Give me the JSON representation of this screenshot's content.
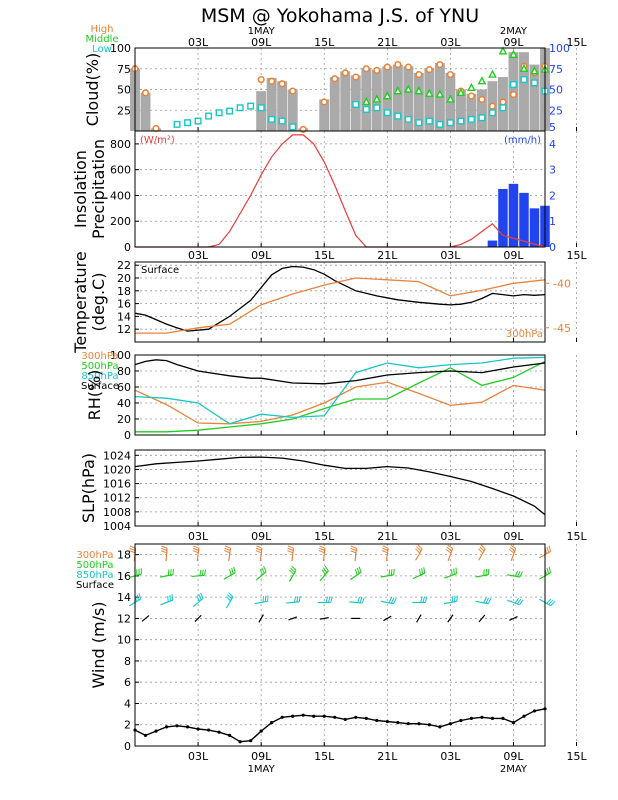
{
  "title": "MSM @ Yokohama J.S. of YNU",
  "colors": {
    "orange": "#e8843c",
    "green": "#22cc22",
    "cyan": "#19c6c6",
    "black": "#000000",
    "red": "#e83c3c",
    "blue": "#2244ee",
    "bar_gray": "#aaaaaa",
    "grid": "#9a9a9a"
  },
  "time_axis": {
    "hours": [
      -3,
      36
    ],
    "tick_labels": [
      "03L",
      "09L",
      "15L",
      "21L",
      "03L",
      "09L",
      "15L"
    ],
    "tick_hours": [
      3,
      9,
      15,
      21,
      27,
      33,
      39
    ],
    "date_labels": [
      {
        "hour": 9,
        "label": "1MAY"
      },
      {
        "hour": 33,
        "label": "2MAY"
      }
    ]
  },
  "chart_data": [
    {
      "type": "bar",
      "name": "cloud",
      "ylabel": "Cloud(%)",
      "ylim": [
        0,
        100
      ],
      "yticks": [
        25,
        50,
        75,
        100
      ],
      "right_ticks": [
        5,
        25,
        50,
        75,
        100
      ],
      "legend": [
        "High",
        "Middle",
        "Low"
      ],
      "x": [
        -3,
        -2,
        -1,
        0,
        1,
        2,
        3,
        4,
        5,
        6,
        7,
        8,
        9,
        10,
        11,
        12,
        13,
        14,
        15,
        16,
        17,
        18,
        19,
        20,
        21,
        22,
        23,
        24,
        25,
        26,
        27,
        28,
        29,
        30,
        31,
        32,
        33,
        34,
        35,
        36
      ],
      "bars": [
        75,
        46,
        3,
        0,
        0,
        0,
        0,
        0,
        0,
        0,
        0,
        0,
        48,
        64,
        60,
        50,
        3,
        0,
        38,
        65,
        72,
        67,
        76,
        74,
        78,
        80,
        78,
        70,
        76,
        82,
        70,
        50,
        45,
        50,
        60,
        65,
        95,
        95,
        80,
        100
      ],
      "series": [
        {
          "name": "High",
          "marker": "circle",
          "values": [
            75,
            46,
            3,
            null,
            null,
            null,
            null,
            null,
            null,
            null,
            null,
            null,
            62,
            60,
            57,
            48,
            2,
            null,
            35,
            63,
            70,
            65,
            75,
            73,
            77,
            80,
            77,
            68,
            74,
            80,
            68,
            48,
            42,
            38,
            30,
            35,
            44,
            78,
            70,
            78
          ]
        },
        {
          "name": "Middle",
          "marker": "triangle",
          "values": [
            null,
            null,
            null,
            null,
            null,
            null,
            null,
            null,
            null,
            null,
            null,
            null,
            null,
            null,
            null,
            null,
            null,
            null,
            null,
            null,
            null,
            null,
            35,
            38,
            42,
            48,
            50,
            48,
            45,
            44,
            38,
            46,
            52,
            60,
            68,
            96,
            92,
            75,
            72,
            74
          ]
        },
        {
          "name": "Low",
          "marker": "square",
          "values": [
            null,
            null,
            null,
            null,
            8,
            10,
            12,
            18,
            22,
            24,
            28,
            30,
            28,
            14,
            12,
            5,
            null,
            null,
            null,
            null,
            null,
            32,
            26,
            28,
            22,
            18,
            14,
            10,
            12,
            8,
            10,
            12,
            14,
            16,
            22,
            28,
            56,
            62,
            58,
            48
          ]
        }
      ]
    },
    {
      "type": "line",
      "name": "insolation-precipitation",
      "ylabel": "Insolation Precipitation",
      "ylim": [
        0,
        900
      ],
      "yticks": [
        0,
        200,
        400,
        600,
        800
      ],
      "left_unit": "(W/m²)",
      "right_unit": "(mm/h)",
      "right_ylim": [
        0,
        4.5
      ],
      "right_ticks": [
        0,
        1,
        2,
        3,
        4
      ],
      "insolation": {
        "x": [
          -3,
          0,
          3,
          4,
          5,
          6,
          7,
          8,
          9,
          10,
          11,
          12,
          13,
          14,
          15,
          16,
          17,
          18,
          19,
          27,
          28,
          29,
          30,
          31,
          32,
          36
        ],
        "values": [
          0,
          0,
          0,
          0,
          20,
          120,
          260,
          400,
          560,
          700,
          800,
          870,
          870,
          800,
          660,
          480,
          280,
          90,
          0,
          0,
          20,
          60,
          120,
          180,
          90,
          0
        ]
      },
      "precipitation": {
        "x": [
          31,
          32,
          33,
          34,
          35,
          36
        ],
        "values": [
          0.25,
          2.25,
          2.45,
          2.1,
          1.5,
          1.6
        ]
      }
    },
    {
      "type": "line",
      "name": "temperature",
      "ylabel": "Temperature (deg.C)",
      "ylim": [
        10,
        22.5
      ],
      "yticks": [
        12,
        14,
        16,
        18,
        20,
        22
      ],
      "right_ticks": [
        -40,
        -45
      ],
      "series_labels": [
        "Surface",
        "300hPa"
      ],
      "surface": {
        "x": [
          -3,
          -2,
          0,
          1,
          2,
          4,
          6,
          8,
          9,
          10,
          11,
          12,
          13,
          14,
          15,
          16,
          18,
          20,
          22,
          24,
          26,
          27,
          28,
          29,
          30,
          31,
          32,
          33,
          34,
          35,
          36
        ],
        "values": [
          14.5,
          14.2,
          12.8,
          12.2,
          11.7,
          12.0,
          14.0,
          16.5,
          18.5,
          20.5,
          21.5,
          21.8,
          21.7,
          21.3,
          20.6,
          19.6,
          18.0,
          17.2,
          16.6,
          16.2,
          15.9,
          15.8,
          15.9,
          16.2,
          16.8,
          17.6,
          17.4,
          17.2,
          17.4,
          17.3,
          17.4
        ]
      },
      "upper_300hPa": {
        "x": [
          -3,
          0,
          3,
          6,
          9,
          12,
          15,
          18,
          21,
          24,
          27,
          30,
          33,
          36
        ],
        "values": [
          -45.6,
          -45.6,
          -45.0,
          -44.6,
          -42.4,
          -41.2,
          -40.2,
          -39.4,
          -39.6,
          -39.8,
          -41.4,
          -40.8,
          -40.0,
          -39.6
        ]
      }
    },
    {
      "type": "line",
      "name": "relative-humidity",
      "ylabel": "RH(%)",
      "ylim": [
        0,
        100
      ],
      "yticks": [
        0,
        20,
        40,
        60,
        80,
        100
      ],
      "legend": [
        "300hPa",
        "500hPa",
        "850hPa",
        "Surface"
      ],
      "series": [
        {
          "name": "300hPa",
          "x": [
            -3,
            0,
            3,
            6,
            9,
            12,
            15,
            18,
            21,
            24,
            27,
            30,
            33,
            36
          ],
          "values": [
            56,
            38,
            15,
            14,
            17,
            25,
            40,
            60,
            66,
            52,
            37,
            41,
            62,
            56
          ]
        },
        {
          "name": "500hPa",
          "x": [
            -3,
            0,
            3,
            6,
            9,
            12,
            15,
            18,
            21,
            24,
            27,
            30,
            33,
            36
          ],
          "values": [
            4,
            4,
            6,
            10,
            14,
            20,
            33,
            45,
            45,
            65,
            84,
            62,
            72,
            92
          ]
        },
        {
          "name": "850hPa",
          "x": [
            -3,
            0,
            3,
            6,
            9,
            12,
            15,
            18,
            21,
            24,
            27,
            30,
            33,
            36
          ],
          "values": [
            48,
            46,
            40,
            14,
            26,
            22,
            24,
            78,
            90,
            84,
            88,
            90,
            96,
            97
          ]
        },
        {
          "name": "Surface",
          "x": [
            -3,
            -2,
            -1,
            0,
            1,
            2,
            3,
            4,
            6,
            8,
            9,
            12,
            15,
            18,
            21,
            24,
            27,
            30,
            33,
            36
          ],
          "values": [
            88,
            92,
            94,
            93,
            88,
            84,
            80,
            78,
            74,
            71,
            71,
            65,
            64,
            68,
            75,
            78,
            80,
            78,
            85,
            90
          ]
        }
      ]
    },
    {
      "type": "line",
      "name": "sea-level-pressure",
      "ylabel": "SLP(hPa)",
      "ylim": [
        1004,
        1025.5
      ],
      "yticks": [
        1004,
        1008,
        1012,
        1016,
        1020,
        1024
      ],
      "x": [
        -3,
        -1,
        1,
        3,
        5,
        7,
        9,
        11,
        13,
        15,
        17,
        19,
        21,
        23,
        25,
        27,
        29,
        31,
        33,
        35,
        36
      ],
      "values": [
        1020.8,
        1021.6,
        1022.0,
        1022.4,
        1022.9,
        1023.4,
        1023.5,
        1023.2,
        1022.4,
        1021.2,
        1020.3,
        1020.3,
        1020.8,
        1020.4,
        1019.3,
        1018.0,
        1016.6,
        1014.6,
        1012.5,
        1009.6,
        1007.2
      ]
    },
    {
      "type": "line",
      "name": "wind",
      "ylabel": "Wind (m/s)",
      "ylim": [
        0,
        19
      ],
      "yticks": [
        0,
        2,
        4,
        6,
        8,
        10,
        12,
        14,
        16,
        18
      ],
      "legend": [
        "300hPa",
        "500hPa",
        "850hPa",
        "Surface"
      ],
      "speed": {
        "x": [
          -3,
          -2,
          -1,
          0,
          1,
          2,
          3,
          4,
          5,
          6,
          7,
          8,
          9,
          10,
          11,
          12,
          13,
          14,
          15,
          16,
          17,
          18,
          19,
          20,
          21,
          22,
          23,
          24,
          25,
          26,
          27,
          28,
          29,
          30,
          31,
          32,
          33,
          34,
          35,
          36
        ],
        "values": [
          1.5,
          1.0,
          1.4,
          1.8,
          1.9,
          1.8,
          1.6,
          1.5,
          1.3,
          1.0,
          0.4,
          0.5,
          1.4,
          2.2,
          2.7,
          2.8,
          2.9,
          2.8,
          2.8,
          2.7,
          2.5,
          2.7,
          2.6,
          2.4,
          2.3,
          2.2,
          2.1,
          2.1,
          2.0,
          1.8,
          2.1,
          2.4,
          2.6,
          2.7,
          2.6,
          2.6,
          2.2,
          2.8,
          3.3,
          3.5
        ]
      },
      "barb_rows": [
        {
          "name": "300hPa",
          "level": 18,
          "x": [
            -3,
            0,
            3,
            6,
            9,
            12,
            15,
            18,
            21,
            24,
            27,
            30,
            33,
            36
          ],
          "angle": [
            -85,
            -85,
            -83,
            -82,
            -83,
            -83,
            -83,
            -84,
            -82,
            -60,
            -70,
            -60,
            -70,
            -30
          ]
        },
        {
          "name": "500hPa",
          "level": 16,
          "x": [
            -3,
            0,
            3,
            6,
            9,
            12,
            15,
            18,
            21,
            24,
            27,
            30,
            33,
            36
          ],
          "angle": [
            -15,
            -10,
            -5,
            -30,
            -40,
            -60,
            -50,
            -35,
            -10,
            -25,
            -20,
            -10,
            10,
            -30
          ]
        },
        {
          "name": "850hPa",
          "level": 13.5,
          "x": [
            -3,
            0,
            3,
            6,
            9,
            12,
            15,
            18,
            21,
            24,
            27,
            30,
            33,
            36
          ],
          "angle": [
            -30,
            -20,
            -40,
            -60,
            -10,
            -5,
            0,
            5,
            10,
            0,
            -10,
            10,
            20,
            30
          ]
        },
        {
          "name": "Surface",
          "level": 12,
          "x": [
            -2,
            3,
            9,
            12,
            15,
            18,
            21,
            24,
            27,
            30,
            33
          ],
          "angle": [
            -40,
            -45,
            -60,
            -20,
            -10,
            0,
            -30,
            -60,
            -55,
            -50,
            -25
          ]
        }
      ]
    }
  ]
}
